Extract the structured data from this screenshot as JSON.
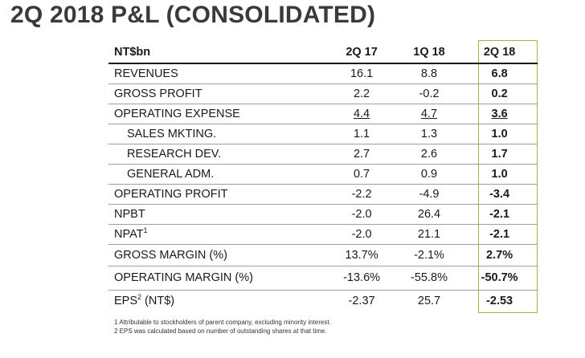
{
  "title": "2Q 2018 P&L (CONSOLIDATED)",
  "table": {
    "header": [
      "NT$bn",
      "2Q 17",
      "1Q 18",
      "2Q 18"
    ],
    "rows": [
      {
        "label": "REVENUES",
        "sup": "",
        "suffix": "",
        "values": [
          "16.1",
          "8.8",
          "6.8"
        ]
      },
      {
        "label": "GROSS PROFIT",
        "sup": "",
        "suffix": "",
        "values": [
          "2.2",
          "-0.2",
          "0.2"
        ]
      },
      {
        "label": "OPERATING EXPENSE",
        "sup": "",
        "suffix": "",
        "values": [
          "4.4",
          "4.7",
          "3.6"
        ]
      },
      {
        "label": "SALES MKTING.",
        "sup": "",
        "suffix": "",
        "values": [
          "1.1",
          "1.3",
          "1.0"
        ]
      },
      {
        "label": "RESEARCH DEV.",
        "sup": "",
        "suffix": "",
        "values": [
          "2.7",
          "2.6",
          "1.7"
        ]
      },
      {
        "label": "GENERAL ADM.",
        "sup": "",
        "suffix": "",
        "values": [
          "0.7",
          "0.9",
          "1.0"
        ]
      },
      {
        "label": "OPERATING PROFIT",
        "sup": "",
        "suffix": "",
        "values": [
          "-2.2",
          "-4.9",
          "-3.4"
        ]
      },
      {
        "label": "NPBT",
        "sup": "",
        "suffix": "",
        "values": [
          "-2.0",
          "26.4",
          "-2.1"
        ]
      },
      {
        "label": "NPAT",
        "sup": "1",
        "suffix": "",
        "values": [
          "-2.0",
          "21.1",
          "-2.1"
        ]
      },
      {
        "label": "GROSS MARGIN (%)",
        "sup": "",
        "suffix": "",
        "values": [
          "13.7%",
          "-2.1%",
          "2.7%"
        ]
      },
      {
        "label": "OPERATING MARGIN (%)",
        "sup": "",
        "suffix": "",
        "values": [
          "-13.6%",
          "-55.8%",
          "-50.7%"
        ]
      },
      {
        "label": "EPS",
        "sup": "2",
        "suffix": " (NT$)",
        "values": [
          "-2.37",
          "25.7",
          "-2.53"
        ]
      }
    ]
  },
  "footnotes": [
    "1 Attributable to stockholders of parent company, excluding minority interest.",
    "2 EPS was calculated based on number of outstanding shares at that time."
  ],
  "colors": {
    "highlight_border": "#8fc03a",
    "title": "#3a3a3a"
  }
}
